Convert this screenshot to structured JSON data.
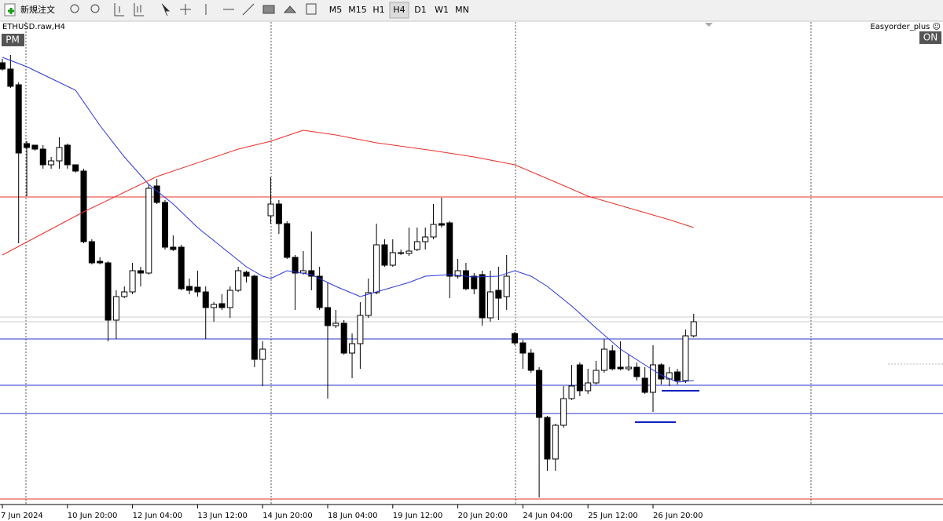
{
  "toolbar": {
    "new_order": "新規注文",
    "timeframes": [
      "M5",
      "M15",
      "H1",
      "H4",
      "D1",
      "W1",
      "MN"
    ],
    "active": "H4"
  },
  "chart_data": {
    "type": "candlestick",
    "title": "ETHUSD.raw,H4",
    "badge_left": "PM",
    "indicator": "Easyorder_plus ☺",
    "badge_right": "ON",
    "ylim": [
      3230,
      3840
    ],
    "categories": [
      "7 Jun 2024",
      null,
      null,
      null,
      null,
      null,
      null,
      null,
      "10 Jun 20:00",
      null,
      null,
      null,
      null,
      null,
      null,
      null,
      "12 Jun 04:00",
      null,
      null,
      null,
      null,
      null,
      null,
      null,
      "13 Jun 12:00",
      null,
      null,
      null,
      null,
      null,
      null,
      null,
      "14 Jun 20:00",
      null,
      null,
      null,
      null,
      null,
      null,
      null,
      "18 Jun 04:00",
      null,
      null,
      null,
      null,
      null,
      null,
      null,
      "19 Jun 12:00",
      null,
      null,
      null,
      null,
      null,
      null,
      null,
      "20 Jun 20:00",
      null,
      null,
      null,
      null,
      null,
      null,
      null,
      "24 Jun 04:00",
      null,
      null,
      null,
      null,
      null,
      null,
      null,
      "25 Jun 12:00",
      null,
      null,
      null,
      null,
      null,
      null,
      null,
      "26 Jun 20:00",
      null,
      null,
      null,
      null,
      null
    ],
    "open": [
      3790,
      3782,
      3762,
      3687,
      3685,
      3680,
      3660,
      3665,
      3685,
      3660,
      3652,
      3562,
      3537,
      3535,
      3462,
      3492,
      3498,
      3525,
      3522,
      3633,
      3612,
      3555,
      3555,
      3505,
      3504,
      3498,
      3478,
      3483,
      3478,
      3500,
      3523,
      3518,
      3412,
      3595,
      3610,
      3585,
      3542,
      3522,
      3525,
      3518,
      3478,
      3455,
      3458,
      3420,
      3432,
      3468,
      3497,
      3558,
      3532,
      3547,
      3547,
      3552,
      3562,
      3568,
      3585,
      3586,
      3518,
      3525,
      3518,
      3520,
      3465,
      3500,
      3492,
      3445,
      3433,
      3420,
      3398,
      3338,
      3285,
      3328,
      3362,
      3405,
      3372,
      3382,
      3398,
      3423,
      3402,
      3400,
      3402,
      3388,
      3370,
      3405,
      3387,
      3396,
      3385,
      3442
    ],
    "high": [
      3795,
      3800,
      3765,
      3690,
      3685,
      3685,
      3670,
      3695,
      3687,
      3660,
      3655,
      3565,
      3542,
      3537,
      3500,
      3505,
      3535,
      3530,
      3635,
      3642,
      3615,
      3570,
      3558,
      3515,
      3525,
      3505,
      3485,
      3495,
      3505,
      3530,
      3525,
      3520,
      3435,
      3644,
      3615,
      3588,
      3545,
      3550,
      3575,
      3530,
      3510,
      3475,
      3462,
      3445,
      3485,
      3515,
      3585,
      3565,
      3565,
      3552,
      3580,
      3580,
      3580,
      3610,
      3618,
      3588,
      3540,
      3535,
      3522,
      3525,
      3525,
      3530,
      3545,
      3447,
      3437,
      3425,
      3402,
      3340,
      3330,
      3378,
      3405,
      3408,
      3400,
      3410,
      3438,
      3430,
      3435,
      3418,
      3408,
      3402,
      3430,
      3407,
      3402,
      3400,
      3450,
      3470
    ],
    "low": [
      3780,
      3758,
      3560,
      3620,
      3678,
      3655,
      3655,
      3655,
      3655,
      3650,
      3560,
      3533,
      3533,
      3435,
      3438,
      3490,
      3495,
      3505,
      3520,
      3610,
      3552,
      3550,
      3500,
      3495,
      3492,
      3438,
      3460,
      3475,
      3465,
      3498,
      3510,
      3402,
      3378,
      3585,
      3572,
      3540,
      3475,
      3520,
      3500,
      3475,
      3362,
      3452,
      3418,
      3388,
      3400,
      3465,
      3495,
      3530,
      3530,
      3545,
      3544,
      3550,
      3552,
      3565,
      3580,
      3490,
      3515,
      3500,
      3495,
      3455,
      3460,
      3462,
      3475,
      3430,
      3400,
      3395,
      3236,
      3270,
      3270,
      3325,
      3360,
      3365,
      3368,
      3380,
      3395,
      3398,
      3398,
      3397,
      3385,
      3368,
      3345,
      3380,
      3378,
      3380,
      3382,
      3440
    ],
    "close": [
      3782,
      3760,
      3675,
      3682,
      3680,
      3660,
      3665,
      3682,
      3660,
      3652,
      3562,
      3535,
      3535,
      3462,
      3492,
      3498,
      3525,
      3522,
      3630,
      3612,
      3555,
      3552,
      3502,
      3500,
      3498,
      3478,
      3482,
      3478,
      3500,
      3525,
      3518,
      3412,
      3425,
      3610,
      3585,
      3542,
      3522,
      3525,
      3518,
      3478,
      3455,
      3458,
      3420,
      3432,
      3468,
      3497,
      3558,
      3532,
      3548,
      3548,
      3550,
      3562,
      3568,
      3584,
      3583,
      3518,
      3525,
      3502,
      3502,
      3465,
      3498,
      3490,
      3518,
      3433,
      3420,
      3398,
      3338,
      3285,
      3328,
      3362,
      3378,
      3372,
      3382,
      3398,
      3425,
      3400,
      3400,
      3402,
      3390,
      3370,
      3405,
      3387,
      3395,
      3385,
      3442,
      3460
    ],
    "lines": [
      {
        "color": "#2a35d8",
        "x": [
          0,
          3,
          6,
          9,
          12,
          15,
          18,
          21,
          24,
          27,
          30,
          32,
          33,
          35,
          38,
          41,
          44,
          46,
          50,
          52,
          55,
          58,
          61,
          63,
          65,
          67,
          70,
          73,
          76,
          79,
          81,
          83,
          85
        ],
        "values": [
          3797,
          3785,
          3770,
          3755,
          3710,
          3670,
          3635,
          3610,
          3580,
          3555,
          3530,
          3518,
          3515,
          3525,
          3520,
          3505,
          3492,
          3498,
          3510,
          3518,
          3520,
          3517,
          3518,
          3525,
          3518,
          3505,
          3480,
          3452,
          3425,
          3405,
          3392,
          3383,
          3385
        ]
      },
      {
        "color": "#e8302a",
        "x": [
          0,
          10,
          19,
          29,
          33,
          37,
          41,
          46,
          53,
          58,
          63,
          68,
          72,
          77,
          82,
          85
        ],
        "values": [
          3545,
          3600,
          3645,
          3680,
          3690,
          3704,
          3698,
          3688,
          3678,
          3670,
          3660,
          3638,
          3620,
          3605,
          3590,
          3580
        ]
      }
    ],
    "levels": [
      {
        "value": 3619,
        "color": "#e8302a"
      },
      {
        "value": 3234,
        "color": "#e8302a"
      },
      {
        "value": 3438,
        "color": "#2a35c8"
      },
      {
        "value": 3379,
        "color": "#2a35c8"
      },
      {
        "value": 3343,
        "color": "#2a35c8"
      },
      {
        "value": 3466,
        "color": "#cccccc"
      },
      {
        "value": 3460,
        "color": "#cccccc"
      }
    ],
    "segments": [
      {
        "value": 3372,
        "color": "#1020c0"
      },
      {
        "value": 3332,
        "color": "#1020c0"
      }
    ]
  }
}
